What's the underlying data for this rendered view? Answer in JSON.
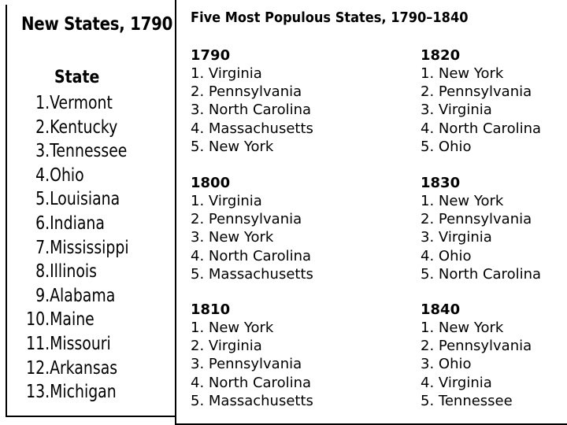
{
  "new_states": {
    "title": "New States, 1790",
    "header": "State",
    "items": [
      {
        "num": "1.",
        "name": "Vermont"
      },
      {
        "num": "2.",
        "name": "Kentucky"
      },
      {
        "num": "3.",
        "name": "Tennessee"
      },
      {
        "num": "4.",
        "name": "Ohio"
      },
      {
        "num": "5.",
        "name": "Louisiana"
      },
      {
        "num": "6.",
        "name": "Indiana"
      },
      {
        "num": "7.",
        "name": "Mississippi"
      },
      {
        "num": "8.",
        "name": "Illinois"
      },
      {
        "num": "9.",
        "name": "Alabama"
      },
      {
        "num": "10.",
        "name": "Maine"
      },
      {
        "num": "11.",
        "name": "Missouri"
      },
      {
        "num": "12.",
        "name": "Arkansas"
      },
      {
        "num": "13.",
        "name": "Michigan"
      }
    ]
  },
  "populous": {
    "title": "Five Most Populous States, 1790–1840",
    "years": [
      {
        "year": "1790",
        "states": [
          "1. Virginia",
          "2. Pennsylvania",
          "3. North Carolina",
          "4. Massachusetts",
          "5. New York"
        ]
      },
      {
        "year": "1800",
        "states": [
          "1. Virginia",
          "2. Pennsylvania",
          "3. New York",
          "4. North Carolina",
          "5. Massachusetts"
        ]
      },
      {
        "year": "1810",
        "states": [
          "1. New York",
          "2. Virginia",
          "3. Pennsylvania",
          "4. North Carolina",
          "5. Massachusetts"
        ]
      },
      {
        "year": "1820",
        "states": [
          "1. New York",
          "2. Pennsylvania",
          "3. Virginia",
          "4. North Carolina",
          "5. Ohio"
        ]
      },
      {
        "year": "1830",
        "states": [
          "1. New York",
          "2. Pennsylvania",
          "3. Virginia",
          "4. Ohio",
          "5. North Carolina"
        ]
      },
      {
        "year": "1840",
        "states": [
          "1. New York",
          "2. Pennsylvania",
          "3. Ohio",
          "4. Virginia",
          "5. Tennessee"
        ]
      }
    ]
  }
}
